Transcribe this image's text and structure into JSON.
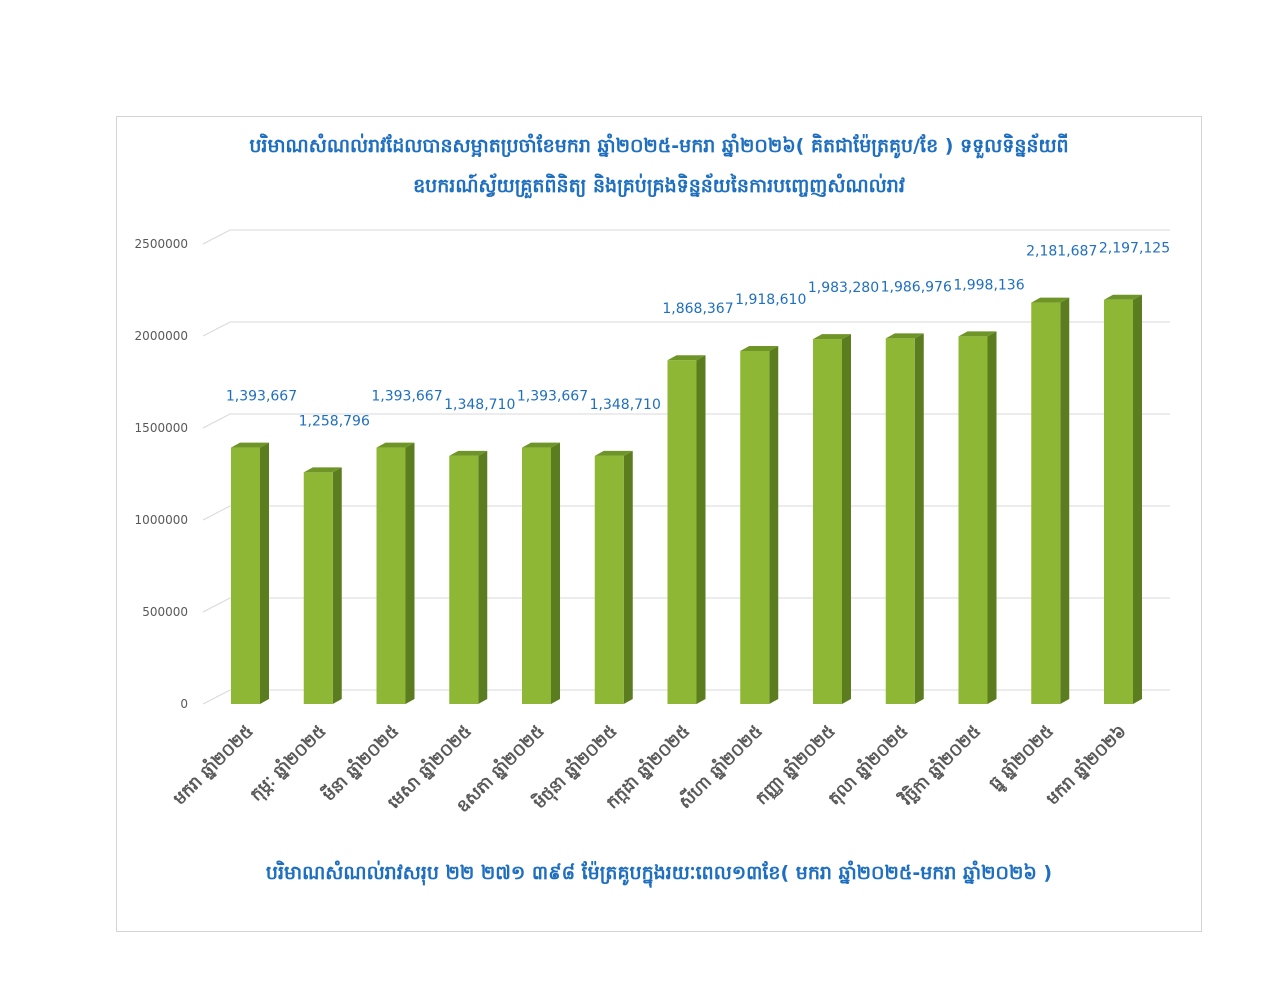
{
  "chart_data": {
    "type": "bar",
    "title_lines": [
      "បរិមាណសំណល់រាវដែលបានសម្អាតប្រចាំខែមករា ឆ្នាំ២០២៥-មករា ឆ្នាំ២០២៦( គិតជាម៉ែត្រគូប/ខែ ) ទទួលទិន្នន័យពី",
      "ឧបករណ៍ស្វ័យគ្រួតពិនិត្យ និងគ្រប់គ្រងទិន្នន័យនៃការបញ្ចេញសំណល់រាវ"
    ],
    "footer_note": "បរិមាណសំណល់រាវសរុប ២២ ២៧១ ៣៩៨ ម៉ែត្រគូបក្នុងរយៈពេល១៣ខែ( មករា ឆ្នាំ២០២៥-មករា ឆ្នាំ២០២៦ )",
    "categories": [
      "មករា ឆ្នាំ២០២៥",
      "កុម្ភៈ ឆ្នាំ២០២៥",
      "មីនា ឆ្នាំ២០២៥",
      "មេសា ឆ្នាំ២០២៥",
      "ឧសភា ឆ្នាំ២០២៥",
      "មិថុនា ឆ្នាំ២០២៥",
      "កក្កដា ឆ្នាំ២០២៥",
      "សីហា ឆ្នាំ២០២៥",
      "កញ្ញា ឆ្នាំ២០២៥",
      "តុលា ឆ្នាំ២០២៥",
      "វិច្ឆិកា ឆ្នាំ២០២៥",
      "ធ្នូ ឆ្នាំ២០២៥",
      "មករា ឆ្នាំ២០២៦"
    ],
    "values": [
      1393667,
      1258796,
      1393667,
      1348710,
      1393667,
      1348710,
      1868367,
      1918610,
      1983280,
      1986976,
      1998136,
      2181687,
      2197125
    ],
    "data_labels": [
      "1,393,667",
      "1,258,796",
      "1,393,667",
      "1,348,710",
      "1,393,667",
      "1,348,710",
      "1,868,367",
      "1,918,610",
      "1,983,280",
      "1,986,976",
      "1,998,136",
      "2,181,687",
      "2,197,125"
    ],
    "y_ticks": [
      "0",
      "500000",
      "1000000",
      "1500000",
      "2000000",
      "2500000"
    ],
    "ylim": [
      0,
      2500000
    ],
    "grid": true,
    "legend": "none",
    "colors": {
      "bar_front": "#8DB735",
      "bar_side": "#5B7D20",
      "bar_top": "#6F9528",
      "data_label": "#1F6FC0",
      "title": "#1F6FC0",
      "axis_text": "#595959",
      "gridline": "#D9D9D9"
    }
  }
}
